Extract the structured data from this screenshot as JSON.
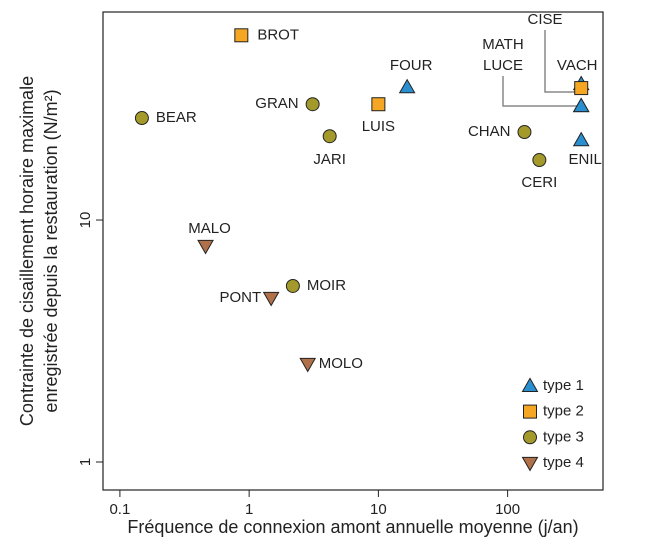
{
  "chart_data": {
    "type": "scatter",
    "xlabel": "Fréquence de connexion amont annuelle moyenne (j/an)",
    "ylabel": [
      "Contrainte de cisaillement horaire maximale",
      "enregistrée depuis la restauration (N/m²)"
    ],
    "xscale": "log",
    "yscale": "log",
    "xlim": [
      0.074,
      547
    ],
    "ylim": [
      0.766,
      72.4
    ],
    "xticks": [
      0.1,
      1,
      10,
      100
    ],
    "yticks": [
      1,
      10
    ],
    "legend": "lower right",
    "series": [
      {
        "name": "type 1",
        "marker": "triangle-up",
        "color": "#2a8fd0",
        "labels": [
          "FOUR",
          "VACH",
          "MATH",
          "LUCE",
          "ENIL"
        ],
        "x": [
          16.7,
          371,
          371,
          371,
          371
        ],
        "values": [
          35.4,
          36.5,
          29.6,
          29.6,
          21.4
        ]
      },
      {
        "name": "type 2",
        "marker": "square",
        "color": "#f5a623",
        "labels": [
          "BROT",
          "LUIS",
          "CISE"
        ],
        "x": [
          0.87,
          10,
          371
        ],
        "values": [
          58,
          30.1,
          35.1
        ]
      },
      {
        "name": "type 3",
        "marker": "circle",
        "color": "#a49a2b",
        "labels": [
          "BEAR",
          "GRAN",
          "JARI",
          "CHAN",
          "CERI",
          "MOIR"
        ],
        "x": [
          0.148,
          3.1,
          4.2,
          135,
          176,
          2.18
        ],
        "values": [
          26.4,
          30.1,
          22.2,
          23.1,
          17.7,
          5.34
        ]
      },
      {
        "name": "type 4",
        "marker": "triangle-down",
        "color": "#b0704a",
        "labels": [
          "MALO",
          "PONT",
          "MOLO"
        ],
        "x": [
          0.46,
          1.48,
          2.84
        ],
        "values": [
          7.81,
          4.76,
          2.54
        ]
      }
    ]
  }
}
